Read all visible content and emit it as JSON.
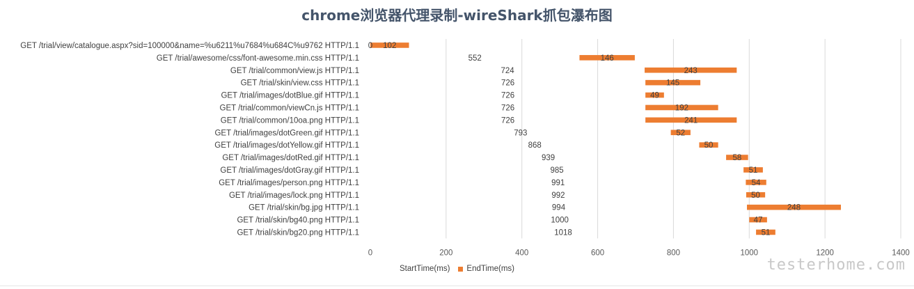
{
  "chart_data": {
    "type": "bar",
    "orientation": "horizontal",
    "stacked": true,
    "title": "chrome浏览器代理录制-wireShark抓包瀑布图",
    "categories": [
      "GET /trial/view/catalogue.aspx?sid=100000&name=%u6211%u7684%u684C%u9762 HTTP/1.1",
      "GET /trial/awesome/css/font-awesome.min.css HTTP/1.1",
      "GET /trial/common/view.js HTTP/1.1",
      "GET /trial/skin/view.css HTTP/1.1",
      "GET /trial/images/dotBlue.gif HTTP/1.1",
      "GET /trial/common/viewCn.js HTTP/1.1",
      "GET /trial/common/10oa.png HTTP/1.1",
      "GET /trial/images/dotGreen.gif HTTP/1.1",
      "GET /trial/images/dotYellow.gif HTTP/1.1",
      "GET /trial/images/dotRed.gif HTTP/1.1",
      "GET /trial/images/dotGray.gif HTTP/1.1",
      "GET /trial/images/person.png HTTP/1.1",
      "GET /trial/images/lock.png HTTP/1.1",
      "GET /trial/skin/bg.jpg HTTP/1.1",
      "GET /trial/skin/bg40.png HTTP/1.1",
      "GET /trial/skin/bg20.png HTTP/1.1"
    ],
    "series": [
      {
        "name": "StartTime(ms)",
        "color": "transparent",
        "values": [
          0,
          552,
          724,
          726,
          726,
          726,
          726,
          793,
          868,
          939,
          985,
          991,
          992,
          994,
          1000,
          1018
        ]
      },
      {
        "name": "EndTime(ms)",
        "color": "#ed7d31",
        "values": [
          102,
          146,
          243,
          145,
          49,
          192,
          241,
          52,
          50,
          58,
          51,
          54,
          50,
          248,
          47,
          51
        ]
      }
    ],
    "xlim": [
      0,
      1400
    ],
    "xticks": [
      "0",
      "200",
      "400",
      "600",
      "800",
      "1000",
      "1200",
      "1400"
    ],
    "grid": "vertical",
    "legend_position": "bottom"
  },
  "watermark": "testerhome.com"
}
